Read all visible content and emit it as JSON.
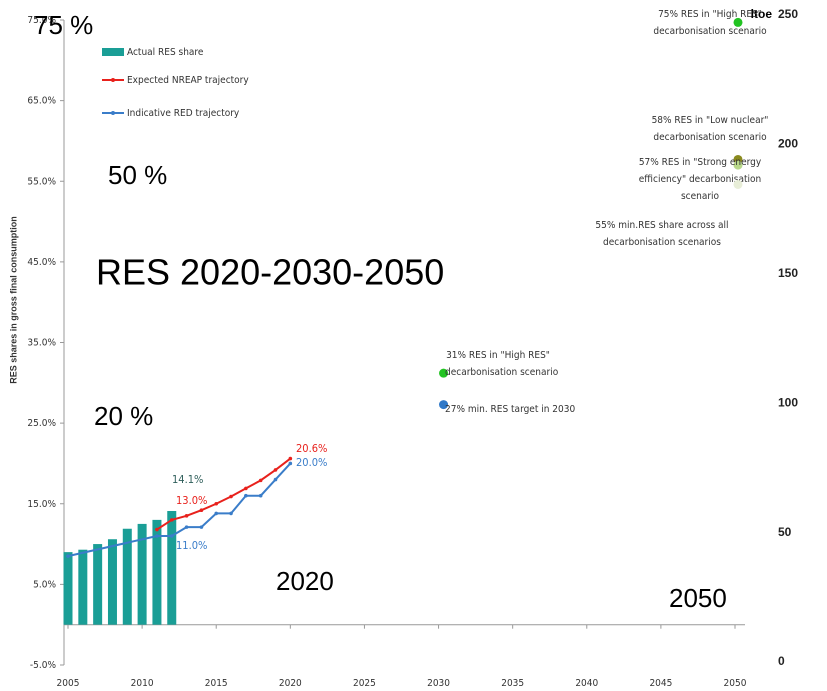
{
  "chart_data": {
    "type": "bar",
    "ylabel": "RES shares in gross final consumption",
    "xlim": [
      2005,
      2050
    ],
    "xticks": [
      2005,
      2010,
      2015,
      2020,
      2025,
      2030,
      2035,
      2040,
      2045,
      2050
    ],
    "ylim": [
      -5,
      75
    ],
    "yticks": [
      {
        "value": -5,
        "label": "-5.0%"
      },
      {
        "value": 5,
        "label": "5.0%"
      },
      {
        "value": 15,
        "label": "15.0%"
      },
      {
        "value": 25,
        "label": "25.0%"
      },
      {
        "value": 35,
        "label": "35.0%"
      },
      {
        "value": 45,
        "label": "45.0%"
      },
      {
        "value": 55,
        "label": "55.0%"
      },
      {
        "value": 65,
        "label": "65.0%"
      },
      {
        "value": 75,
        "label": "75.0%"
      }
    ],
    "y2lim": [
      0,
      250
    ],
    "y2ticks": [
      0,
      50,
      100,
      150,
      200,
      250
    ],
    "y2label": "ltoe",
    "series": [
      {
        "name": "Actual RES share",
        "type": "bar",
        "color": "#1a9e96",
        "x": [
          2005,
          2006,
          2007,
          2008,
          2009,
          2010,
          2011,
          2012
        ],
        "values": [
          9.0,
          9.3,
          10.0,
          10.6,
          11.9,
          12.5,
          13.0,
          14.1
        ]
      },
      {
        "name": "Expected NREAP trajectory",
        "type": "line",
        "color": "#e8211c",
        "x": [
          2011,
          2012,
          2013,
          2014,
          2015,
          2016,
          2017,
          2018,
          2019,
          2020
        ],
        "values": [
          11.8,
          13.0,
          13.5,
          14.2,
          15.0,
          15.9,
          16.9,
          17.9,
          19.2,
          20.6
        ]
      },
      {
        "name": "Indicative RED trajectory",
        "type": "line",
        "color": "#3a7dc9",
        "x": [
          2005,
          2011,
          2012,
          2013,
          2014,
          2015,
          2016,
          2017,
          2018,
          2019,
          2020
        ],
        "values": [
          8.5,
          11.0,
          11.0,
          12.1,
          12.1,
          13.8,
          13.8,
          16.0,
          16.0,
          18.0,
          20.0
        ]
      }
    ],
    "data_labels": [
      {
        "text": "20.6%",
        "color": "#e8211c"
      },
      {
        "text": "20.0%",
        "color": "#3a7dc9"
      },
      {
        "text": "14.1%",
        "color": "#2e5e5a"
      },
      {
        "text": "13.0%",
        "color": "#e8211c"
      },
      {
        "text": "11.0%",
        "color": "#3a7dc9"
      }
    ],
    "points": [
      {
        "lines": [
          "75% RES in \"High RES\"",
          "decarbonisation scenario"
        ],
        "x": 2050,
        "value": 74.7,
        "color": "#22c322"
      },
      {
        "lines": [
          "58% RES in \"Low nuclear\"",
          "decarbonisation scenario"
        ],
        "x": 2050,
        "value": 57.7,
        "color": "#8a8a1e"
      },
      {
        "lines": [
          "57% RES in \"Strong energy",
          "efficiency\" decarbonisation",
          "scenario"
        ],
        "x": 2050,
        "value": 57.0,
        "color": "#b8d88a"
      },
      {
        "lines": [
          "55% min.RES share across all",
          "decarbonisation scenarios"
        ],
        "x": 2050,
        "value": 54.6,
        "color": "#e8eed8"
      },
      {
        "lines": [
          "31% RES in \"High RES\"",
          "decarbonisation scenario"
        ],
        "x": 2030,
        "value": 31.2,
        "color": "#22c322"
      },
      {
        "lines": [
          "27% min. RES target in 2030"
        ],
        "x": 2030,
        "value": 27.3,
        "color": "#2e78c8"
      }
    ],
    "overlay_labels": [
      "75 %",
      "50 %",
      "RES 2020-2030-2050",
      "20 %",
      "2020",
      "2050"
    ]
  }
}
